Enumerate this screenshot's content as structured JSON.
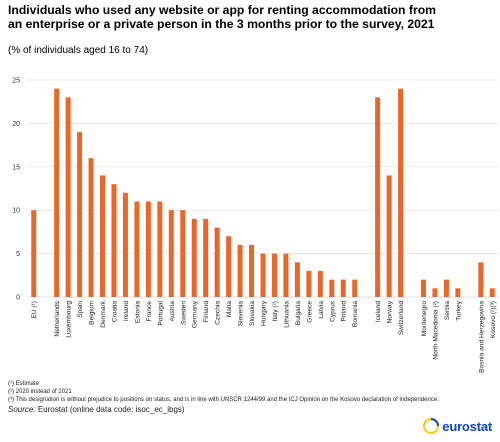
{
  "title": "Individuals who used any website or app for renting accommodation from an enterprise or a private person in the 3 months prior to the survey, 2021",
  "subtitle": "(% of individuals aged 16 to 74)",
  "notes": [
    "(¹) Estimate",
    "(²) 2020 instead of 2021",
    "(³) This designation is without prejudice to positions on status, and is in line with UNSCR 1244/99 and the ICJ Opinion on the Kosovo declaration of independence."
  ],
  "source_label": "Source:",
  "source_text": "Eurostat (online data code: isoc_ec_ibgs)",
  "logo_text": "eurostat",
  "colors": {
    "bar": "#e8682a",
    "grid": "#d9d9d9",
    "logo": "#0e47cb"
  },
  "chart_data": {
    "type": "bar",
    "categories": [
      "EU (¹)",
      "",
      "Netherlands",
      "Luxembourg",
      "Spain",
      "Belgium",
      "Denmark",
      "Croatia",
      "Ireland",
      "Estonia",
      "France",
      "Portugal",
      "Austria",
      "Sweden",
      "Germany",
      "Finland",
      "Czechia",
      "Malta",
      "Slovenia",
      "Slovakia",
      "Hungary",
      "Italy (²)",
      "Lithuania",
      "Bulgaria",
      "Greece",
      "Latvia",
      "Cyprus",
      "Poland",
      "Romania",
      "",
      "Iceland",
      "Norway",
      "Switzerland",
      "",
      "Montenegro",
      "North Macedonia (²)",
      "Serbia",
      "Turkey",
      "",
      "Bosnia and Herzegovina",
      "Kosovo (²)(³)"
    ],
    "values": [
      10,
      null,
      24,
      23,
      19,
      16,
      14,
      13,
      12,
      11,
      11,
      11,
      10,
      10,
      9,
      9,
      8,
      7,
      6,
      6,
      5,
      5,
      5,
      4,
      3,
      3,
      2,
      2,
      2,
      null,
      23,
      14,
      24,
      null,
      2,
      1,
      2,
      1,
      null,
      4,
      1
    ],
    "ylim": [
      0,
      25
    ],
    "yticks": [
      0,
      5,
      10,
      15,
      20,
      25
    ],
    "grid": true,
    "xlabel": "",
    "ylabel": ""
  }
}
